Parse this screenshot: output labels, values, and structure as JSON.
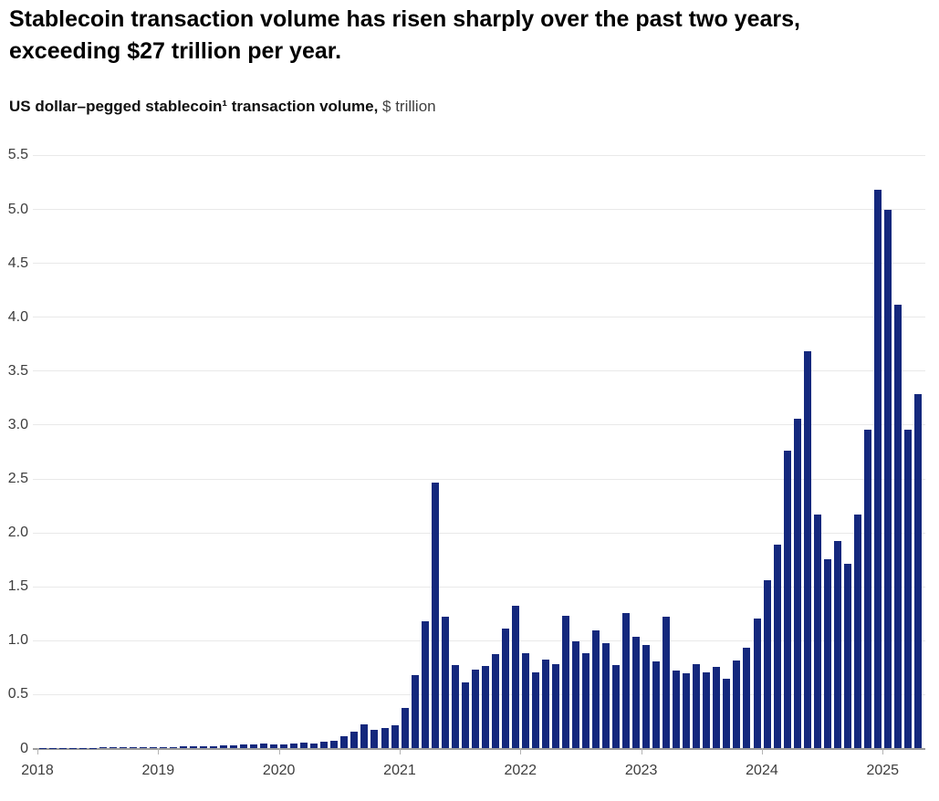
{
  "header": {
    "title": "Stablecoin transaction volume has risen sharply over the past two years,\nexceeding $27 trillion per year.",
    "subtitle_bold": "US dollar–pegged stablecoin¹ transaction volume,",
    "subtitle_unit": " $ trillion"
  },
  "colors": {
    "bar": "#14287d",
    "gridline": "#e9e9e9",
    "baseline": "#9c9c9c",
    "axis_text": "#3d3d3d",
    "title_text": "#000000"
  },
  "chart_data": {
    "type": "bar",
    "title": "Stablecoin transaction volume has risen sharply over the past two years, exceeding $27 trillion per year.",
    "subtitle": "US dollar–pegged stablecoin¹ transaction volume, $ trillion",
    "ylabel": "$ trillion",
    "xlabel": "",
    "ylim": [
      0,
      5.5
    ],
    "y_tick_labels": [
      "0",
      "0.5",
      "1.0",
      "1.5",
      "2.0",
      "2.5",
      "3.0",
      "3.5",
      "4.0",
      "4.5",
      "5.0",
      "5.5"
    ],
    "x_tick_labels": [
      "2018",
      "2019",
      "2020",
      "2021",
      "2022",
      "2023",
      "2024",
      "2025"
    ],
    "grid": true,
    "legend": false,
    "start_month": "2018-01",
    "end_month": "2025-04",
    "series": [
      {
        "name": "US dollar-pegged stablecoin transaction volume ($T, monthly)",
        "values": [
          0.002,
          0.002,
          0.003,
          0.003,
          0.004,
          0.004,
          0.005,
          0.005,
          0.006,
          0.007,
          0.008,
          0.009,
          0.01,
          0.012,
          0.014,
          0.017,
          0.019,
          0.021,
          0.025,
          0.028,
          0.03,
          0.036,
          0.04,
          0.038,
          0.032,
          0.04,
          0.05,
          0.046,
          0.058,
          0.068,
          0.11,
          0.155,
          0.22,
          0.17,
          0.185,
          0.21,
          0.37,
          0.68,
          1.18,
          2.46,
          1.22,
          0.77,
          0.61,
          0.73,
          0.76,
          0.87,
          1.11,
          1.32,
          0.88,
          0.7,
          0.82,
          0.78,
          1.23,
          0.99,
          0.88,
          1.09,
          0.97,
          0.77,
          1.25,
          1.03,
          0.96,
          0.8,
          1.22,
          0.72,
          0.69,
          0.78,
          0.7,
          0.75,
          0.64,
          0.81,
          0.93,
          1.2,
          1.56,
          1.89,
          2.76,
          3.05,
          3.68,
          2.17,
          1.75,
          1.92,
          1.71,
          2.17,
          2.95,
          5.18,
          4.99,
          4.11,
          2.95,
          3.28
        ]
      }
    ]
  }
}
